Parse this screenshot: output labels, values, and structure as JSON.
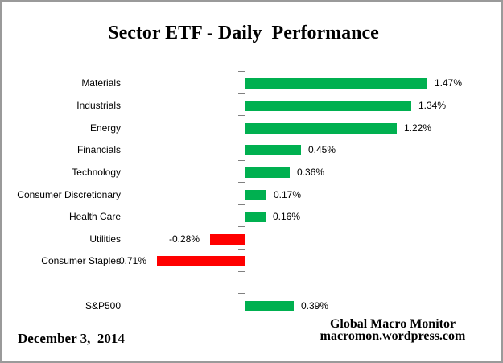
{
  "title": "Sector ETF - Daily  Performance",
  "chart_data": {
    "type": "bar",
    "orientation": "horizontal",
    "title": "Sector ETF - Daily  Performance",
    "xlabel": "",
    "ylabel": "",
    "grid": false,
    "legend": false,
    "value_unit": "%",
    "xlim": [
      -0.9,
      1.6
    ],
    "positive_color": "#00B050",
    "negative_color": "#FF0000",
    "axis_color": "#808080",
    "rows": [
      {
        "category": "Materials",
        "value": 1.47,
        "label": "1.47%"
      },
      {
        "category": "Industrials",
        "value": 1.34,
        "label": "1.34%"
      },
      {
        "category": "Energy",
        "value": 1.22,
        "label": "1.22%"
      },
      {
        "category": "Financials",
        "value": 0.45,
        "label": "0.45%"
      },
      {
        "category": "Technology",
        "value": 0.36,
        "label": "0.36%"
      },
      {
        "category": "Consumer Discretionary",
        "value": 0.17,
        "label": "0.17%"
      },
      {
        "category": "Health Care",
        "value": 0.16,
        "label": "0.16%"
      },
      {
        "category": "Utilities",
        "value": -0.28,
        "label": "-0.28%"
      },
      {
        "category": "Consumer Staples",
        "value": -0.71,
        "label": "-0.71%"
      },
      {
        "category": "S&P500",
        "value": 0.39,
        "label": "0.39%",
        "gap_before": true
      }
    ]
  },
  "footer": {
    "date": "December 3,  2014",
    "source_line1": "Global Macro Monitor",
    "source_line2": "macromon.wordpress.com"
  }
}
